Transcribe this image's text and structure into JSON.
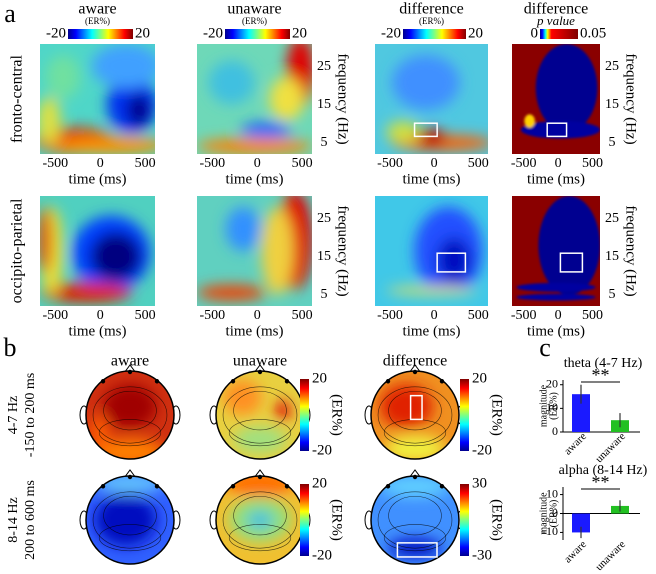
{
  "panel_a": {
    "label": "a",
    "columns": [
      {
        "title": "aware",
        "unit": "(ER%)",
        "scale": [
          -20,
          20
        ]
      },
      {
        "title": "unaware",
        "unit": "(ER%)",
        "scale": [
          -20,
          20
        ]
      },
      {
        "title": "difference",
        "unit": "(ER%)",
        "scale": [
          -20,
          20
        ]
      },
      {
        "title": "difference",
        "unit": "p value",
        "scale": [
          0,
          0.05
        ]
      }
    ],
    "rows": [
      "fronto-central",
      "occipito-parietal"
    ],
    "x_label": "time (ms)",
    "x_ticks": [
      -500,
      0,
      500
    ],
    "y_label": "frequency (Hz)",
    "y_ticks": [
      25,
      15,
      5
    ]
  },
  "panel_b": {
    "label": "b",
    "columns": [
      "aware",
      "unaware",
      "difference"
    ],
    "rows": [
      {
        "band": "4-7 Hz",
        "window": "-150 to 200 ms",
        "scale": [
          20,
          -20
        ],
        "diff_scale": [
          20,
          -20
        ]
      },
      {
        "band": "8-14 Hz",
        "window": "200 to 600 ms",
        "scale": [
          20,
          -20
        ],
        "diff_scale": [
          30,
          -30
        ]
      }
    ],
    "unit": "(ER%)"
  },
  "panel_c": {
    "label": "c"
  },
  "chart_data": [
    {
      "type": "bar",
      "title": "theta (4-7 Hz)",
      "y_label": "magnitude",
      "y_unit": "(ER%)",
      "categories": [
        "aware",
        "unaware"
      ],
      "values": [
        16,
        5
      ],
      "errors": [
        4,
        3
      ],
      "colors": [
        "#1a1aff",
        "#22c022"
      ],
      "ylim": [
        0,
        22
      ],
      "yticks": [
        0,
        10,
        20
      ],
      "annotation": "**"
    },
    {
      "type": "bar",
      "title": "alpha (8-14 Hz)",
      "y_label": "magnitude",
      "y_unit": "(ER%)",
      "categories": [
        "aware",
        "unaware"
      ],
      "values": [
        -10,
        4
      ],
      "errors": [
        3,
        3
      ],
      "colors": [
        "#1a1aff",
        "#22c022"
      ],
      "ylim": [
        -14,
        14
      ],
      "yticks": [
        -10,
        0,
        10
      ],
      "annotation": "**"
    }
  ]
}
